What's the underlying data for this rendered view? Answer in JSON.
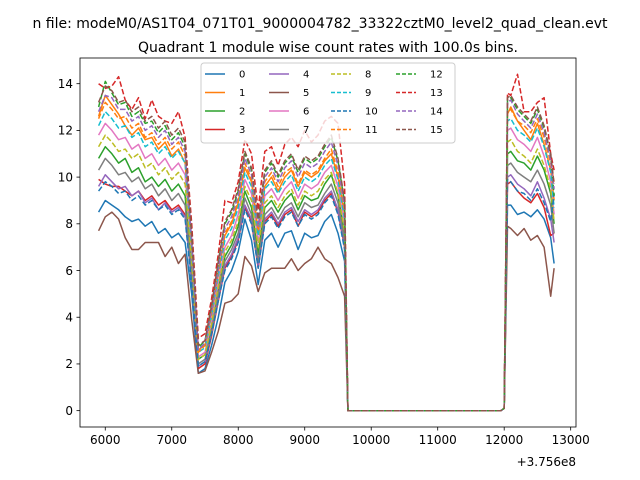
{
  "chart_data": {
    "type": "line",
    "suptitle": "n file: modeM0/AS1T04_071T01_9000004782_33322cztM0_level2_quad_clean.evt",
    "title": "Quadrant 1 module wise count rates with 100.0s bins.",
    "xlabel": "",
    "ylabel": "",
    "x_offset_label": "+3.756e8",
    "xlim": [
      5620,
      13080
    ],
    "ylim": [
      -0.7,
      15.1
    ],
    "xticks": [
      6000,
      7000,
      8000,
      9000,
      10000,
      11000,
      12000,
      13000
    ],
    "yticks": [
      0,
      2,
      4,
      6,
      8,
      10,
      12,
      14
    ],
    "x": [
      5900,
      6000,
      6100,
      6200,
      6300,
      6400,
      6500,
      6600,
      6700,
      6800,
      6900,
      7000,
      7100,
      7200,
      7300,
      7400,
      7500,
      7600,
      7700,
      7800,
      7900,
      8000,
      8100,
      8200,
      8300,
      8400,
      8500,
      8600,
      8700,
      8800,
      8900,
      9000,
      9100,
      9200,
      9300,
      9400,
      9500,
      9600,
      9650,
      11950,
      12000,
      12050,
      12100,
      12200,
      12300,
      12400,
      12500,
      12600,
      12700,
      12750
    ],
    "series": [
      {
        "name": "0",
        "color": "#1f77b4",
        "dashed": false,
        "values": [
          8.5,
          9.0,
          8.8,
          8.6,
          8.3,
          8.1,
          8.2,
          7.9,
          8.1,
          7.6,
          7.8,
          7.4,
          7.6,
          7.2,
          5.0,
          1.6,
          1.8,
          2.8,
          4.0,
          5.5,
          6.0,
          6.8,
          8.2,
          7.3,
          5.4,
          7.3,
          7.6,
          7.0,
          7.6,
          7.7,
          6.9,
          7.6,
          7.4,
          7.5,
          8.1,
          8.4,
          7.6,
          6.4,
          0.0,
          0.0,
          0.1,
          8.8,
          8.8,
          8.4,
          8.5,
          8.3,
          8.6,
          8.2,
          7.4,
          6.3
        ]
      },
      {
        "name": "1",
        "color": "#ff7f0e",
        "dashed": false,
        "values": [
          12.6,
          13.5,
          13.1,
          12.7,
          12.2,
          11.8,
          12.1,
          11.6,
          11.7,
          11.2,
          11.5,
          10.9,
          11.2,
          10.6,
          7.0,
          2.6,
          2.8,
          4.2,
          5.9,
          7.5,
          8.0,
          8.9,
          10.4,
          9.8,
          7.6,
          9.6,
          10.0,
          9.4,
          10.0,
          10.3,
          9.6,
          10.2,
          10.0,
          10.2,
          10.7,
          11.0,
          10.0,
          8.4,
          0.0,
          0.0,
          0.1,
          12.7,
          13.0,
          12.4,
          12.0,
          11.6,
          12.3,
          11.4,
          10.3,
          9.0
        ]
      },
      {
        "name": "2",
        "color": "#2ca02c",
        "dashed": false,
        "values": [
          10.8,
          11.3,
          11.0,
          10.6,
          10.8,
          10.2,
          10.4,
          9.8,
          10.0,
          9.6,
          9.9,
          9.4,
          9.7,
          9.2,
          6.1,
          2.2,
          2.4,
          3.6,
          5.2,
          6.6,
          7.1,
          7.9,
          9.4,
          8.7,
          6.7,
          8.7,
          9.0,
          8.5,
          9.0,
          9.3,
          8.6,
          9.2,
          9.0,
          9.1,
          9.7,
          10.1,
          9.2,
          7.6,
          0.0,
          0.0,
          0.1,
          11.0,
          11.1,
          10.7,
          10.6,
          10.3,
          10.9,
          10.3,
          9.3,
          8.0
        ]
      },
      {
        "name": "3",
        "color": "#d62728",
        "dashed": false,
        "values": [
          9.9,
          9.7,
          9.6,
          9.6,
          9.4,
          9.2,
          9.4,
          9.0,
          9.2,
          8.8,
          9.0,
          8.6,
          8.8,
          8.4,
          5.6,
          1.8,
          2.0,
          3.2,
          4.7,
          6.1,
          6.6,
          7.3,
          8.7,
          8.1,
          6.1,
          8.1,
          8.4,
          7.9,
          8.4,
          8.6,
          7.9,
          8.5,
          8.3,
          8.5,
          9.0,
          9.3,
          8.5,
          7.0,
          0.0,
          0.0,
          0.1,
          9.7,
          9.8,
          9.4,
          9.1,
          8.9,
          9.3,
          8.7,
          7.5,
          7.6
        ]
      },
      {
        "name": "4",
        "color": "#9467bd",
        "dashed": false,
        "values": [
          9.6,
          10.1,
          9.8,
          9.5,
          9.6,
          9.2,
          9.4,
          8.9,
          9.1,
          8.6,
          8.9,
          8.5,
          8.7,
          8.3,
          5.5,
          1.9,
          2.1,
          3.3,
          4.8,
          6.2,
          6.7,
          7.4,
          8.8,
          8.2,
          6.2,
          8.2,
          8.5,
          8.0,
          8.5,
          8.7,
          8.1,
          8.6,
          8.4,
          8.6,
          9.1,
          9.4,
          8.6,
          7.1,
          0.0,
          0.0,
          0.1,
          10.0,
          10.1,
          9.7,
          9.5,
          9.2,
          9.8,
          9.1,
          8.2,
          7.2
        ]
      },
      {
        "name": "5",
        "color": "#8c564b",
        "dashed": false,
        "values": [
          7.7,
          8.3,
          8.5,
          8.2,
          7.4,
          6.9,
          6.9,
          7.2,
          7.2,
          7.2,
          6.6,
          7.0,
          6.3,
          6.7,
          3.9,
          1.6,
          1.7,
          2.5,
          3.4,
          4.6,
          4.7,
          5.0,
          6.6,
          6.2,
          5.1,
          5.9,
          6.1,
          6.1,
          6.1,
          6.5,
          6.0,
          6.3,
          6.5,
          7.0,
          6.5,
          6.3,
          5.7,
          4.9,
          0.0,
          0.0,
          0.1,
          7.9,
          7.8,
          7.5,
          7.8,
          7.3,
          7.5,
          7.0,
          4.9,
          6.1
        ]
      },
      {
        "name": "6",
        "color": "#e377c2",
        "dashed": false,
        "values": [
          11.8,
          12.3,
          12.0,
          11.6,
          11.7,
          11.2,
          11.4,
          10.8,
          11.0,
          10.5,
          10.8,
          10.3,
          10.6,
          10.1,
          6.7,
          2.3,
          2.5,
          3.8,
          5.5,
          7.0,
          7.5,
          8.4,
          9.9,
          9.3,
          7.2,
          9.2,
          9.5,
          9.0,
          9.5,
          9.8,
          9.1,
          9.7,
          9.5,
          9.7,
          10.2,
          10.5,
          9.6,
          8.0,
          0.0,
          0.0,
          0.1,
          12.0,
          12.1,
          11.6,
          11.4,
          11.1,
          11.7,
          10.9,
          9.8,
          8.4
        ]
      },
      {
        "name": "7",
        "color": "#7f7f7f",
        "dashed": false,
        "values": [
          10.3,
          10.8,
          10.5,
          10.1,
          10.2,
          9.8,
          10.0,
          9.5,
          9.7,
          9.2,
          9.5,
          9.0,
          9.3,
          8.8,
          5.8,
          2.0,
          2.2,
          3.4,
          5.0,
          6.4,
          6.9,
          7.6,
          9.1,
          8.4,
          6.4,
          8.4,
          8.7,
          8.2,
          8.7,
          8.9,
          8.3,
          8.9,
          8.7,
          8.8,
          9.3,
          9.7,
          8.9,
          7.3,
          0.0,
          0.0,
          0.1,
          10.5,
          10.6,
          10.2,
          10.0,
          9.8,
          10.3,
          9.7,
          8.8,
          7.6
        ]
      },
      {
        "name": "8",
        "color": "#bcbd22",
        "dashed": true,
        "values": [
          11.3,
          11.8,
          11.5,
          11.1,
          11.2,
          10.8,
          11.0,
          10.4,
          10.6,
          10.1,
          10.4,
          9.9,
          10.2,
          9.7,
          6.4,
          2.2,
          2.4,
          3.7,
          5.3,
          6.8,
          7.3,
          8.1,
          9.6,
          9.0,
          7.0,
          8.9,
          9.2,
          8.7,
          9.2,
          9.5,
          8.8,
          9.4,
          9.2,
          9.4,
          9.9,
          10.2,
          9.3,
          7.7,
          0.0,
          0.0,
          0.1,
          11.5,
          11.6,
          11.1,
          10.9,
          10.6,
          11.2,
          10.5,
          9.5,
          8.1
        ]
      },
      {
        "name": "9",
        "color": "#17becf",
        "dashed": true,
        "values": [
          12.2,
          12.8,
          12.5,
          12.1,
          12.2,
          11.7,
          11.9,
          11.3,
          11.5,
          11.0,
          11.3,
          10.8,
          11.1,
          10.6,
          7.0,
          2.5,
          2.7,
          4.1,
          5.8,
          7.3,
          7.8,
          8.7,
          10.2,
          9.6,
          7.5,
          9.5,
          9.8,
          9.3,
          9.8,
          10.1,
          9.4,
          10.0,
          9.8,
          10.0,
          10.5,
          10.8,
          9.9,
          8.2,
          0.0,
          0.0,
          0.1,
          12.4,
          12.5,
          12.0,
          11.8,
          11.5,
          12.1,
          11.3,
          10.2,
          8.7
        ]
      },
      {
        "name": "10",
        "color": "#1f77b4",
        "dashed": true,
        "values": [
          9.4,
          9.8,
          9.6,
          9.3,
          9.4,
          9.0,
          9.2,
          8.8,
          9.0,
          8.6,
          8.8,
          8.4,
          8.6,
          8.2,
          5.4,
          1.9,
          2.1,
          3.3,
          4.7,
          6.0,
          6.5,
          7.2,
          8.6,
          8.0,
          6.1,
          8.0,
          8.3,
          7.8,
          8.3,
          8.5,
          7.9,
          8.4,
          8.2,
          8.4,
          8.9,
          9.2,
          8.4,
          6.9,
          0.0,
          0.0,
          0.1,
          9.9,
          9.8,
          9.4,
          9.3,
          9.0,
          9.5,
          8.9,
          8.1,
          9.3
        ]
      },
      {
        "name": "11",
        "color": "#ff7f0e",
        "dashed": true,
        "values": [
          12.5,
          13.2,
          12.9,
          12.5,
          12.6,
          12.1,
          12.3,
          11.7,
          11.9,
          11.4,
          11.7,
          11.2,
          11.5,
          10.9,
          7.2,
          2.5,
          2.8,
          4.2,
          6.0,
          7.6,
          8.1,
          9.0,
          10.6,
          9.9,
          7.7,
          9.8,
          10.2,
          9.6,
          10.2,
          10.4,
          9.7,
          10.3,
          10.1,
          10.3,
          10.8,
          11.2,
          10.2,
          8.5,
          0.0,
          0.0,
          0.1,
          12.8,
          12.9,
          12.4,
          12.2,
          11.9,
          12.5,
          11.7,
          10.6,
          9.8
        ]
      },
      {
        "name": "12",
        "color": "#2ca02c",
        "dashed": true,
        "values": [
          13.0,
          14.1,
          13.6,
          13.1,
          13.2,
          12.6,
          12.8,
          12.3,
          12.4,
          11.9,
          12.2,
          11.6,
          11.9,
          11.3,
          7.5,
          2.7,
          3.0,
          4.5,
          6.3,
          8.0,
          8.5,
          9.4,
          11.0,
          10.3,
          8.0,
          10.2,
          10.6,
          10.0,
          10.6,
          10.9,
          10.2,
          10.8,
          10.6,
          10.8,
          11.3,
          11.7,
          10.7,
          8.9,
          0.0,
          0.0,
          0.1,
          13.3,
          13.4,
          12.9,
          12.6,
          12.3,
          12.9,
          12.1,
          10.9,
          9.2
        ]
      },
      {
        "name": "13",
        "color": "#d62728",
        "dashed": true,
        "values": [
          14.0,
          13.8,
          13.9,
          14.3,
          13.3,
          12.9,
          13.4,
          12.5,
          13.3,
          12.6,
          12.4,
          12.3,
          12.8,
          11.7,
          8.0,
          3.1,
          3.3,
          4.8,
          6.7,
          9.0,
          8.9,
          9.8,
          11.6,
          11.0,
          8.6,
          11.1,
          11.3,
          10.5,
          11.4,
          11.7,
          11.3,
          12.0,
          11.5,
          11.8,
          12.4,
          12.6,
          12.3,
          9.7,
          0.0,
          0.0,
          0.1,
          13.6,
          13.5,
          14.4,
          12.8,
          12.8,
          13.2,
          13.4,
          11.0,
          10.3
        ]
      },
      {
        "name": "14",
        "color": "#9467bd",
        "dashed": true,
        "values": [
          12.8,
          13.5,
          13.4,
          12.9,
          12.9,
          12.4,
          12.6,
          12.0,
          12.2,
          11.7,
          12.0,
          11.4,
          11.7,
          11.1,
          7.3,
          2.6,
          2.9,
          4.3,
          6.1,
          7.8,
          8.3,
          9.2,
          10.8,
          10.1,
          7.9,
          10.0,
          10.4,
          9.8,
          10.4,
          10.7,
          10.0,
          10.6,
          10.4,
          10.6,
          11.1,
          11.5,
          10.5,
          8.7,
          0.0,
          0.0,
          0.1,
          13.2,
          13.3,
          12.7,
          12.4,
          12.1,
          12.7,
          11.9,
          10.7,
          9.5
        ]
      },
      {
        "name": "15",
        "color": "#8c564b",
        "dashed": true,
        "values": [
          13.2,
          13.9,
          13.7,
          13.2,
          13.3,
          12.8,
          13.0,
          12.4,
          12.6,
          12.1,
          12.4,
          11.8,
          12.1,
          11.5,
          7.6,
          2.8,
          3.0,
          4.5,
          6.4,
          8.1,
          8.6,
          9.5,
          11.1,
          10.4,
          8.2,
          10.3,
          10.7,
          10.1,
          10.7,
          11.0,
          10.3,
          10.9,
          10.7,
          10.9,
          11.4,
          11.8,
          10.8,
          9.0,
          0.0,
          0.0,
          0.1,
          13.4,
          13.5,
          13.0,
          12.7,
          12.4,
          13.0,
          12.2,
          11.0,
          9.7
        ]
      }
    ]
  }
}
